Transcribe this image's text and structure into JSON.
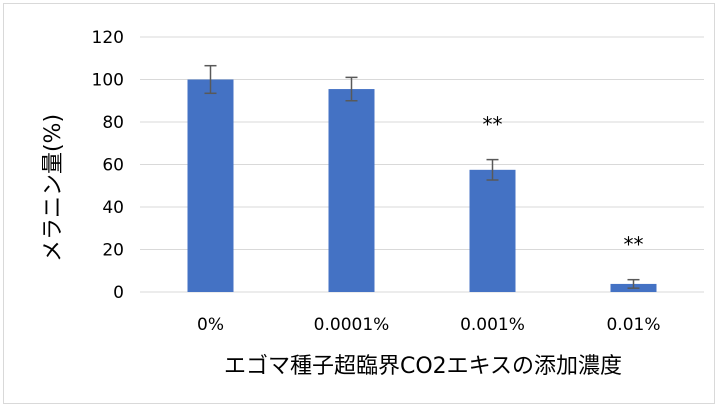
{
  "chart_data": {
    "type": "bar",
    "title": "",
    "xlabel": "エゴマ種子超臨界CO2エキスの添加濃度",
    "ylabel": "メラニン量(%)",
    "categories": [
      "0%",
      "0.0001%",
      "0.001%",
      "0.01%"
    ],
    "values": [
      100,
      95.5,
      57.5,
      3.8
    ],
    "error_bars": [
      6.5,
      5.5,
      4.8,
      2.0
    ],
    "annotations": [
      "",
      "",
      "**",
      "**"
    ],
    "ylim": [
      0,
      120
    ],
    "yticks": [
      0,
      20,
      40,
      60,
      80,
      100,
      120
    ],
    "ytick_labels": [
      "0",
      "20",
      "40",
      "60",
      "80",
      "100",
      "120"
    ],
    "grid": true,
    "legend": "none",
    "colors": {
      "bar": "#4472c4",
      "grid": "#d9d9d9",
      "error": "#595959"
    }
  }
}
